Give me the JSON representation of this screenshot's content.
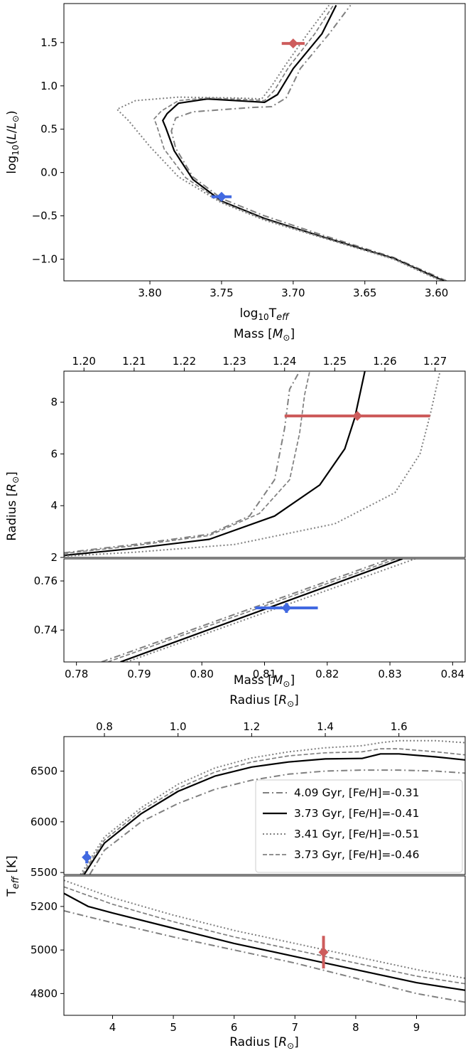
{
  "chart_data": [
    {
      "id": "hrd",
      "type": "line",
      "xlabel": "log₁₀T_eff",
      "ylabel": "log₁₀(L/L⊙)",
      "xlim": [
        3.86,
        3.58
      ],
      "ylim": [
        -1.25,
        1.95
      ],
      "x_ticks": [
        "3.80",
        "3.75",
        "3.70",
        "3.65",
        "3.60"
      ],
      "y_ticks": [
        "−1.0",
        "−0.5",
        "0.0",
        "0.5",
        "1.0",
        "1.5"
      ],
      "series": [
        {
          "style": "dashdot",
          "points": [
            [
              3.593,
              -1.25
            ],
            [
              3.63,
              -0.98
            ],
            [
              3.68,
              -0.72
            ],
            [
              3.72,
              -0.5
            ],
            [
              3.75,
              -0.3
            ],
            [
              3.77,
              -0.05
            ],
            [
              3.782,
              0.28
            ],
            [
              3.785,
              0.48
            ],
            [
              3.782,
              0.63
            ],
            [
              3.77,
              0.7
            ],
            [
              3.73,
              0.75
            ],
            [
              3.715,
              0.76
            ],
            [
              3.705,
              0.86
            ],
            [
              3.695,
              1.2
            ],
            [
              3.675,
              1.6
            ],
            [
              3.66,
              1.93
            ]
          ]
        },
        {
          "style": "solid",
          "points": [
            [
              3.595,
              -1.25
            ],
            [
              3.63,
              -0.99
            ],
            [
              3.68,
              -0.74
            ],
            [
              3.72,
              -0.53
            ],
            [
              3.75,
              -0.33
            ],
            [
              3.77,
              -0.08
            ],
            [
              3.783,
              0.25
            ],
            [
              3.789,
              0.52
            ],
            [
              3.791,
              0.6
            ],
            [
              3.788,
              0.68
            ],
            [
              3.78,
              0.8
            ],
            [
              3.76,
              0.85
            ],
            [
              3.73,
              0.82
            ],
            [
              3.72,
              0.81
            ],
            [
              3.711,
              0.9
            ],
            [
              3.7,
              1.2
            ],
            [
              3.68,
              1.6
            ],
            [
              3.67,
              1.93
            ]
          ]
        },
        {
          "style": "dotted",
          "points": [
            [
              3.597,
              -1.25
            ],
            [
              3.63,
              -1.0
            ],
            [
              3.68,
              -0.75
            ],
            [
              3.72,
              -0.55
            ],
            [
              3.75,
              -0.35
            ],
            [
              3.78,
              -0.05
            ],
            [
              3.8,
              0.3
            ],
            [
              3.815,
              0.6
            ],
            [
              3.823,
              0.73
            ],
            [
              3.81,
              0.83
            ],
            [
              3.78,
              0.87
            ],
            [
              3.74,
              0.86
            ],
            [
              3.722,
              0.85
            ],
            [
              3.715,
              1.0
            ],
            [
              3.705,
              1.25
            ],
            [
              3.69,
              1.6
            ],
            [
              3.675,
              1.93
            ]
          ]
        },
        {
          "style": "dashed",
          "points": [
            [
              3.596,
              -1.25
            ],
            [
              3.63,
              -0.995
            ],
            [
              3.68,
              -0.745
            ],
            [
              3.72,
              -0.54
            ],
            [
              3.75,
              -0.34
            ],
            [
              3.775,
              -0.06
            ],
            [
              3.79,
              0.27
            ],
            [
              3.795,
              0.53
            ],
            [
              3.797,
              0.62
            ],
            [
              3.792,
              0.71
            ],
            [
              3.78,
              0.83
            ],
            [
              3.76,
              0.86
            ],
            [
              3.73,
              0.84
            ],
            [
              3.72,
              0.83
            ],
            [
              3.713,
              0.95
            ],
            [
              3.703,
              1.22
            ],
            [
              3.685,
              1.6
            ],
            [
              3.672,
              1.93
            ]
          ]
        }
      ],
      "stars": [
        {
          "color": "#cd5c5c",
          "x": 3.7,
          "y": 1.49,
          "xerr": 0.008,
          "yerr": 0.03
        },
        {
          "color": "#4169e1",
          "x": 3.75,
          "y": -0.28,
          "xerr": 0.007,
          "yerr": 0.03
        }
      ]
    },
    {
      "id": "mass_radius",
      "type": "line",
      "ylabel": "Radius [R⊙]",
      "top_panel": {
        "xlabel": "Mass [M⊙]",
        "xlim": [
          1.196,
          1.276
        ],
        "ylim": [
          2.0,
          9.2
        ],
        "x_ticks": [
          "1.20",
          "1.21",
          "1.22",
          "1.23",
          "1.24",
          "1.25",
          "1.26",
          "1.27"
        ],
        "y_ticks": [
          "2",
          "4",
          "6",
          "8"
        ],
        "series": [
          {
            "style": "dashdot",
            "points": [
              [
                1.196,
                2.18
              ],
              [
                1.21,
                2.5
              ],
              [
                1.225,
                2.9
              ],
              [
                1.233,
                3.6
              ],
              [
                1.238,
                5.0
              ],
              [
                1.24,
                7.0
              ],
              [
                1.241,
                8.5
              ],
              [
                1.243,
                9.2
              ]
            ]
          },
          {
            "style": "solid",
            "points": [
              [
                1.196,
                2.08
              ],
              [
                1.21,
                2.35
              ],
              [
                1.225,
                2.7
              ],
              [
                1.238,
                3.6
              ],
              [
                1.247,
                4.8
              ],
              [
                1.252,
                6.2
              ],
              [
                1.254,
                7.4
              ],
              [
                1.256,
                9.2
              ]
            ]
          },
          {
            "style": "dotted",
            "points": [
              [
                1.196,
                2.05
              ],
              [
                1.21,
                2.2
              ],
              [
                1.23,
                2.5
              ],
              [
                1.25,
                3.3
              ],
              [
                1.262,
                4.5
              ],
              [
                1.267,
                6.0
              ],
              [
                1.269,
                7.5
              ],
              [
                1.271,
                9.2
              ]
            ]
          },
          {
            "style": "dashed",
            "points": [
              [
                1.196,
                2.15
              ],
              [
                1.21,
                2.45
              ],
              [
                1.225,
                2.85
              ],
              [
                1.235,
                3.7
              ],
              [
                1.241,
                5.0
              ],
              [
                1.243,
                6.8
              ],
              [
                1.244,
                8.3
              ],
              [
                1.245,
                9.2
              ]
            ]
          }
        ],
        "star": {
          "color": "#cd5c5c",
          "x": 1.2545,
          "y": 7.47,
          "xerr": 0.0145,
          "yerr": 0.1
        }
      },
      "bottom_panel": {
        "xlabel": "Mass [M⊙]",
        "xlim": [
          0.778,
          0.842
        ],
        "ylim": [
          0.727,
          0.769
        ],
        "x_ticks": [
          "0.78",
          "0.79",
          "0.80",
          "0.81",
          "0.82",
          "0.83",
          "0.84"
        ],
        "y_ticks": [
          "0.74",
          "0.76"
        ],
        "series": [
          {
            "style": "dashdot",
            "points": [
              [
                0.784,
                0.727
              ],
              [
                0.83,
                0.769
              ]
            ]
          },
          {
            "style": "solid",
            "points": [
              [
                0.787,
                0.727
              ],
              [
                0.832,
                0.769
              ]
            ]
          },
          {
            "style": "dotted",
            "points": [
              [
                0.788,
                0.727
              ],
              [
                0.834,
                0.769
              ]
            ]
          },
          {
            "style": "dashed",
            "points": [
              [
                0.785,
                0.727
              ],
              [
                0.831,
                0.769
              ]
            ]
          }
        ],
        "star": {
          "color": "#4169e1",
          "x": 0.8135,
          "y": 0.749,
          "xerr": 0.005,
          "yerr": 0.002
        }
      }
    },
    {
      "id": "radius_teff",
      "type": "line",
      "ylabel": "T_eff [K]",
      "top_panel": {
        "xlabel": "Radius [R⊙]",
        "xlim": [
          0.69,
          1.78
        ],
        "ylim": [
          5480,
          6840
        ],
        "x_ticks": [
          "0.8",
          "1.0",
          "1.2",
          "1.4",
          "1.6"
        ],
        "y_ticks": [
          "5500",
          "6000",
          "6500"
        ],
        "series": [
          {
            "style": "dashdot",
            "points": [
              [
                0.76,
                5480
              ],
              [
                0.8,
                5720
              ],
              [
                0.9,
                6000
              ],
              [
                1.0,
                6180
              ],
              [
                1.1,
                6320
              ],
              [
                1.2,
                6410
              ],
              [
                1.3,
                6470
              ],
              [
                1.4,
                6500
              ],
              [
                1.5,
                6510
              ],
              [
                1.6,
                6510
              ],
              [
                1.7,
                6500
              ],
              [
                1.78,
                6480
              ]
            ]
          },
          {
            "style": "solid",
            "points": [
              [
                0.745,
                5480
              ],
              [
                0.8,
                5790
              ],
              [
                0.9,
                6080
              ],
              [
                1.0,
                6300
              ],
              [
                1.1,
                6450
              ],
              [
                1.2,
                6540
              ],
              [
                1.3,
                6590
              ],
              [
                1.4,
                6620
              ],
              [
                1.5,
                6625
              ],
              [
                1.55,
                6670
              ],
              [
                1.6,
                6670
              ],
              [
                1.7,
                6640
              ],
              [
                1.78,
                6610
              ]
            ]
          },
          {
            "style": "dotted",
            "points": [
              [
                0.735,
                5480
              ],
              [
                0.8,
                5850
              ],
              [
                0.9,
                6140
              ],
              [
                1.0,
                6370
              ],
              [
                1.1,
                6530
              ],
              [
                1.2,
                6630
              ],
              [
                1.3,
                6690
              ],
              [
                1.4,
                6730
              ],
              [
                1.5,
                6750
              ],
              [
                1.55,
                6780
              ],
              [
                1.6,
                6800
              ],
              [
                1.7,
                6800
              ],
              [
                1.78,
                6780
              ]
            ]
          },
          {
            "style": "dashed",
            "points": [
              [
                0.74,
                5480
              ],
              [
                0.8,
                5820
              ],
              [
                0.9,
                6110
              ],
              [
                1.0,
                6330
              ],
              [
                1.1,
                6490
              ],
              [
                1.2,
                6590
              ],
              [
                1.3,
                6650
              ],
              [
                1.4,
                6680
              ],
              [
                1.5,
                6690
              ],
              [
                1.55,
                6720
              ],
              [
                1.6,
                6720
              ],
              [
                1.7,
                6690
              ],
              [
                1.78,
                6660
              ]
            ]
          }
        ],
        "star": {
          "color": "#4169e1",
          "x": 0.752,
          "y": 5650,
          "xerr": 0.006,
          "yerr": 60
        }
      },
      "bottom_panel": {
        "xlabel": "Radius [R⊙]",
        "xlim": [
          3.2,
          9.8
        ],
        "ylim": [
          4700,
          5340
        ],
        "x_ticks": [
          "4",
          "5",
          "6",
          "7",
          "8",
          "9"
        ],
        "y_ticks": [
          "4800",
          "5000",
          "5200"
        ],
        "series": [
          {
            "style": "dashdot",
            "points": [
              [
                3.2,
                5180
              ],
              [
                4,
                5125
              ],
              [
                5,
                5060
              ],
              [
                6,
                5000
              ],
              [
                7,
                4940
              ],
              [
                8,
                4870
              ],
              [
                9,
                4800
              ],
              [
                9.8,
                4760
              ]
            ]
          },
          {
            "style": "solid",
            "points": [
              [
                3.2,
                5260
              ],
              [
                3.6,
                5200
              ],
              [
                4,
                5170
              ],
              [
                5,
                5100
              ],
              [
                6,
                5030
              ],
              [
                7,
                4970
              ],
              [
                8,
                4910
              ],
              [
                9,
                4850
              ],
              [
                9.8,
                4815
              ]
            ]
          },
          {
            "style": "dotted",
            "points": [
              [
                3.2,
                5320
              ],
              [
                4,
                5240
              ],
              [
                5,
                5160
              ],
              [
                6,
                5090
              ],
              [
                7,
                5030
              ],
              [
                8,
                4970
              ],
              [
                9,
                4910
              ],
              [
                9.8,
                4870
              ]
            ]
          },
          {
            "style": "dashed",
            "points": [
              [
                3.2,
                5290
              ],
              [
                4,
                5210
              ],
              [
                5,
                5130
              ],
              [
                6,
                5060
              ],
              [
                7,
                5000
              ],
              [
                8,
                4940
              ],
              [
                9,
                4880
              ],
              [
                9.8,
                4845
              ]
            ]
          }
        ],
        "star": {
          "color": "#cd5c5c",
          "x": 7.47,
          "y": 4990,
          "xerr": 0.05,
          "yerr": 75
        }
      },
      "legend": {
        "placement": "right",
        "entries": [
          {
            "style": "dashdot",
            "label": "4.09 Gyr, [Fe/H]=-0.31"
          },
          {
            "style": "solid",
            "label": "3.73 Gyr, [Fe/H]=-0.41"
          },
          {
            "style": "dotted",
            "label": "3.41 Gyr, [Fe/H]=-0.51"
          },
          {
            "style": "dashed",
            "label": "3.73 Gyr, [Fe/H]=-0.46"
          }
        ]
      }
    }
  ],
  "colors": {
    "solid": "#000000",
    "gray": "#808080",
    "red_star": "#cd5c5c",
    "blue_star": "#4169e1"
  }
}
